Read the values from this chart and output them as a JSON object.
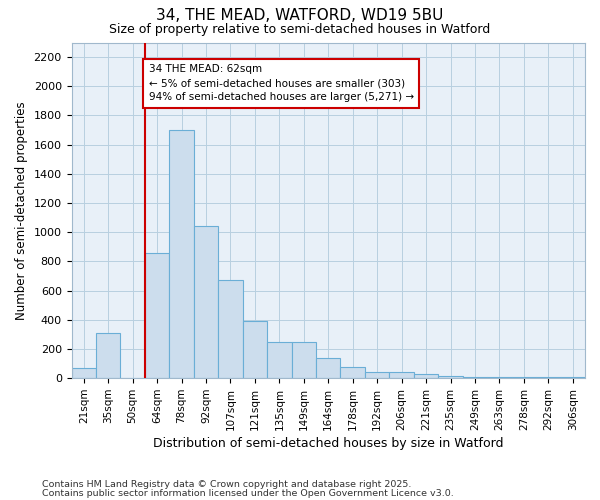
{
  "title1": "34, THE MEAD, WATFORD, WD19 5BU",
  "title2": "Size of property relative to semi-detached houses in Watford",
  "xlabel": "Distribution of semi-detached houses by size in Watford",
  "ylabel": "Number of semi-detached properties",
  "categories": [
    "21sqm",
    "35sqm",
    "50sqm",
    "64sqm",
    "78sqm",
    "92sqm",
    "107sqm",
    "121sqm",
    "135sqm",
    "149sqm",
    "164sqm",
    "178sqm",
    "192sqm",
    "206sqm",
    "221sqm",
    "235sqm",
    "249sqm",
    "263sqm",
    "278sqm",
    "292sqm",
    "306sqm"
  ],
  "values": [
    70,
    310,
    0,
    860,
    1700,
    1040,
    670,
    395,
    245,
    245,
    140,
    80,
    40,
    40,
    30,
    15,
    10,
    5,
    5,
    5,
    5
  ],
  "bar_color": "#ccdded",
  "bar_edge_color": "#6aaed6",
  "vline_index": 3,
  "annotation_text": "34 THE MEAD: 62sqm\n← 5% of semi-detached houses are smaller (303)\n94% of semi-detached houses are larger (5,271) →",
  "vline_color": "#cc0000",
  "annotation_box_edgecolor": "#cc0000",
  "ylim": [
    0,
    2300
  ],
  "yticks": [
    0,
    200,
    400,
    600,
    800,
    1000,
    1200,
    1400,
    1600,
    1800,
    2000,
    2200
  ],
  "grid_color": "#b8cfe0",
  "bg_color": "#e8f0f8",
  "footer1": "Contains HM Land Registry data © Crown copyright and database right 2025.",
  "footer2": "Contains public sector information licensed under the Open Government Licence v3.0."
}
